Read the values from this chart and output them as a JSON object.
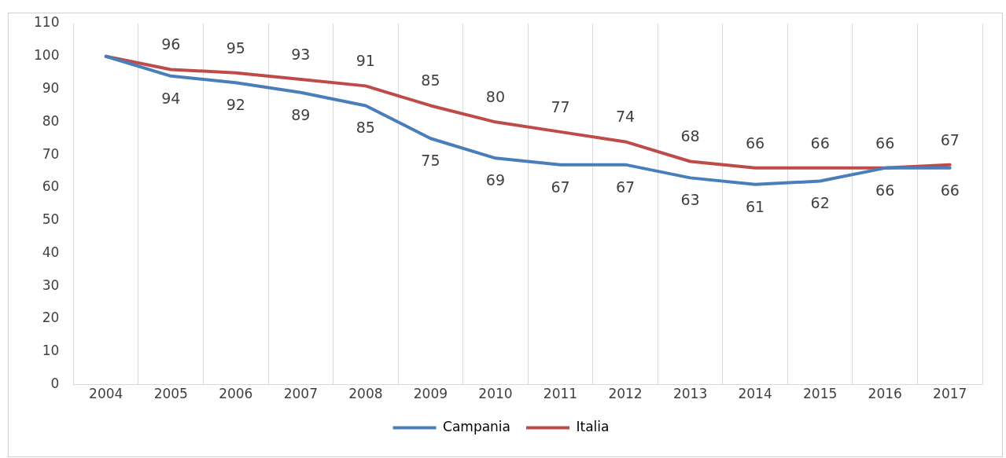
{
  "chart_data": {
    "type": "line",
    "categories": [
      "2004",
      "2005",
      "2006",
      "2007",
      "2008",
      "2009",
      "2010",
      "2011",
      "2012",
      "2013",
      "2014",
      "2015",
      "2016",
      "2017"
    ],
    "series": [
      {
        "name": "Campania",
        "color": "#4a7ebb",
        "values": [
          100,
          94,
          92,
          89,
          85,
          75,
          69,
          67,
          67,
          63,
          61,
          62,
          66,
          66
        ],
        "value_labels": [
          null,
          "94",
          "92",
          "89",
          "85",
          "75",
          "69",
          "67",
          "67",
          "63",
          "61",
          "62",
          "66",
          "66"
        ]
      },
      {
        "name": "Italia",
        "color": "#be4b48",
        "values": [
          100,
          96,
          95,
          93,
          91,
          85,
          80,
          77,
          74,
          68,
          66,
          66,
          66,
          67
        ],
        "value_labels": [
          null,
          "96",
          "95",
          "93",
          "91",
          "85",
          "80",
          "77",
          "74",
          "68",
          "66",
          "66",
          "66",
          "67"
        ]
      }
    ],
    "ylim": [
      0,
      110
    ],
    "yticks": [
      0,
      10,
      20,
      30,
      40,
      50,
      60,
      70,
      80,
      90,
      100,
      110
    ],
    "grid": "x",
    "legend": "bottom",
    "marker": "none",
    "line_style": "solid"
  }
}
